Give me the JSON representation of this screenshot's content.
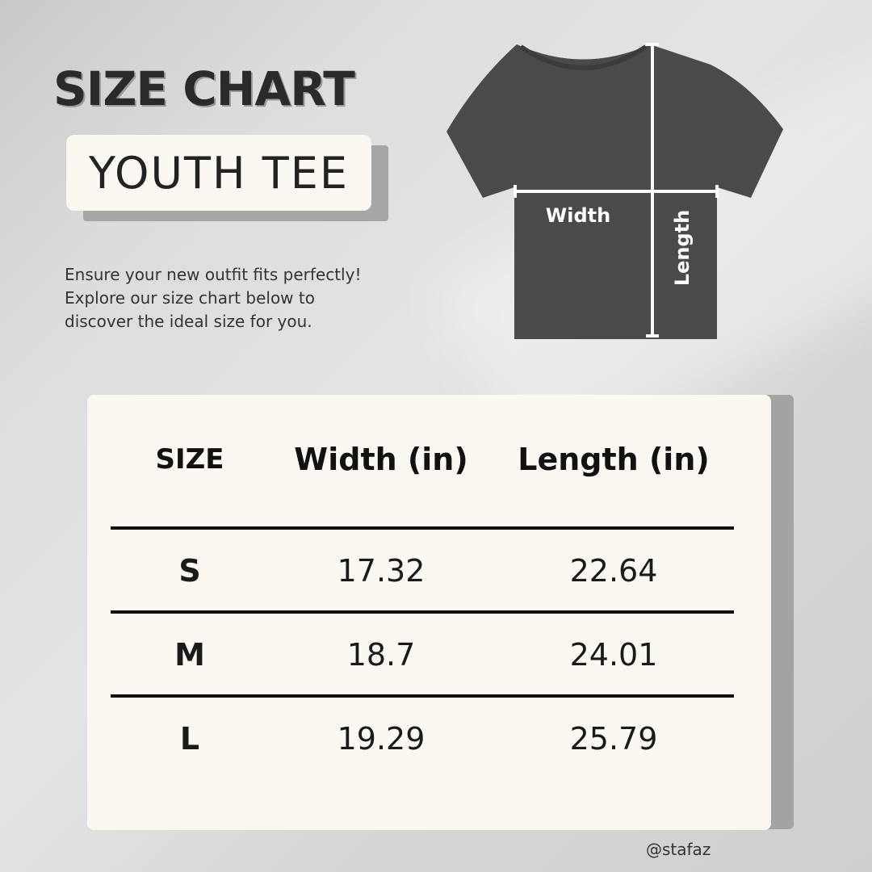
{
  "title": "SIZE CHART",
  "subtitle": "YOUTH TEE",
  "intro": [
    "Ensure your new outfit fits perfectly!",
    "Explore our size chart below to",
    "discover the ideal size for you."
  ],
  "diagram": {
    "width_label": "Width",
    "length_label": "Length",
    "shirt_color": "#4a4a4c"
  },
  "table": {
    "headers": [
      "SIZE",
      "Width (in)",
      "Length (in)"
    ],
    "rows": [
      [
        "S",
        "17.32",
        "22.64"
      ],
      [
        "M",
        "18.7",
        "24.01"
      ],
      [
        "L",
        "19.29",
        "25.79"
      ]
    ]
  },
  "handle": "@stafaz"
}
